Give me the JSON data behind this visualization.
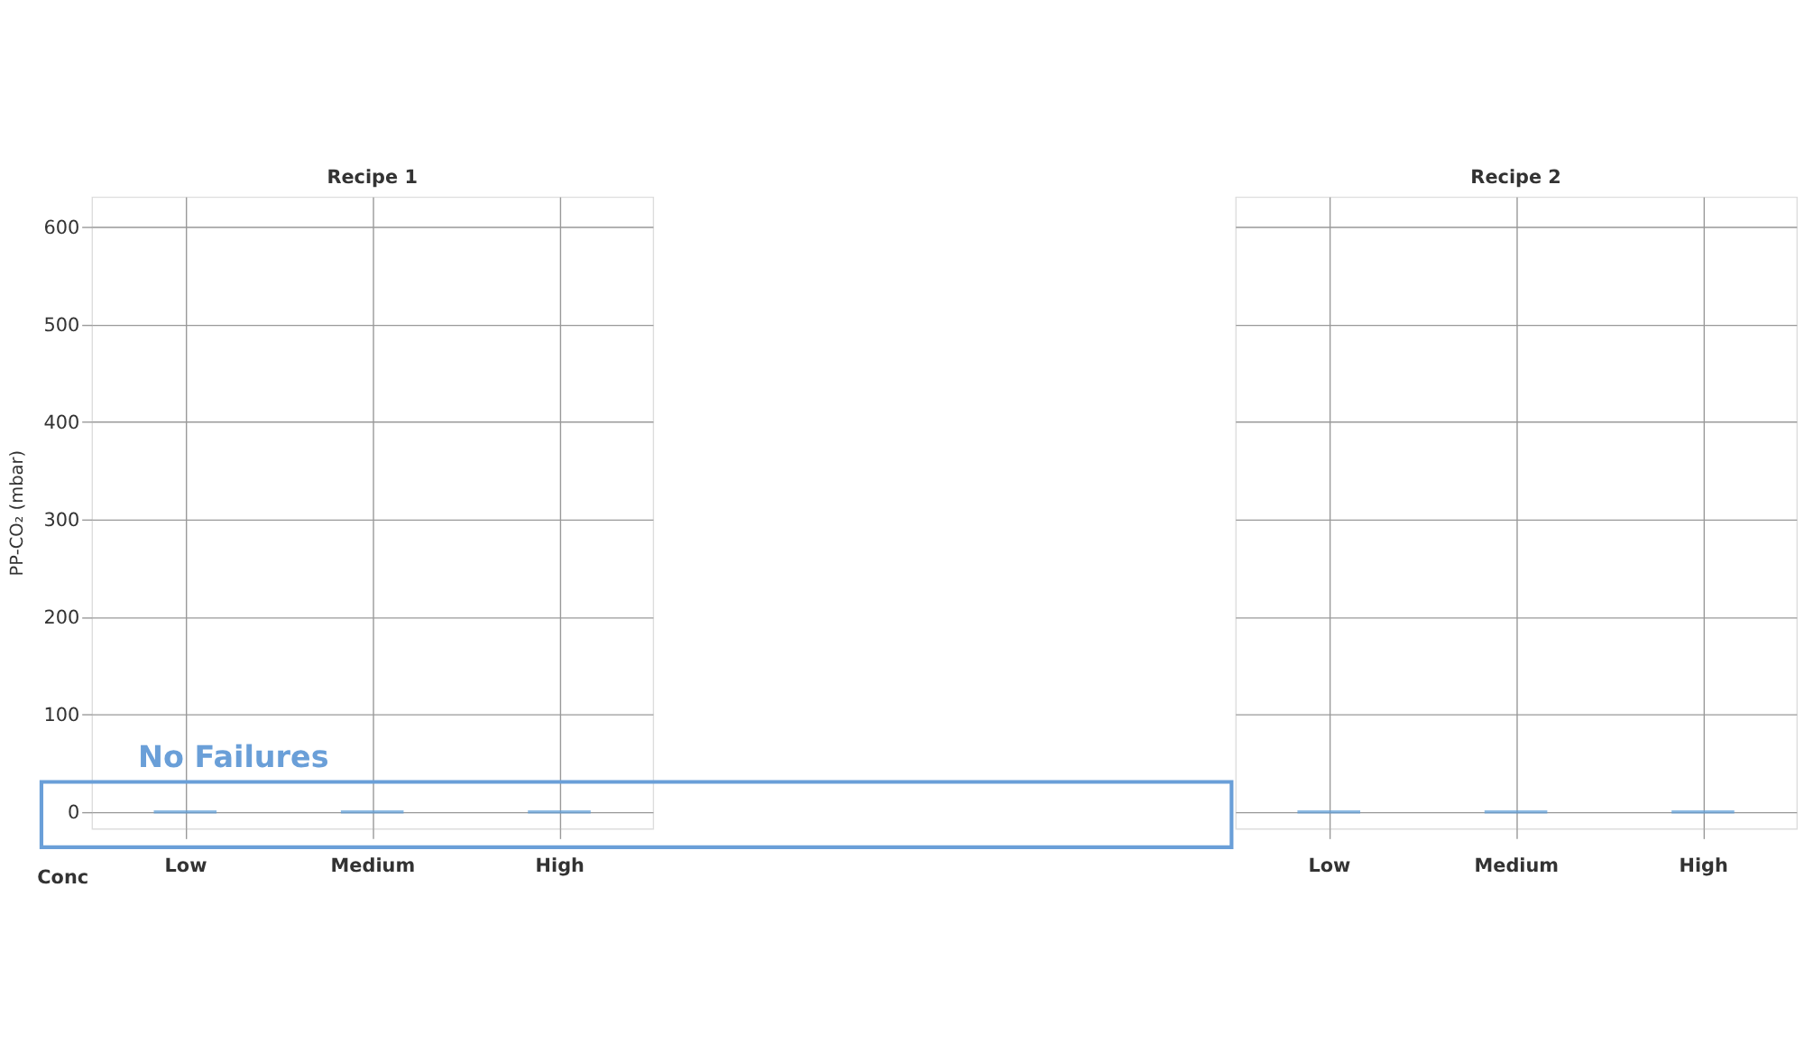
{
  "chart_data": [
    {
      "type": "box",
      "title": "Recipe 1",
      "xlabel": "Conc",
      "ylabel": "PP-CO₂ (mbar)",
      "categories": [
        "Low",
        "Medium",
        "High"
      ],
      "series": [
        {
          "color": "#5b9bd5",
          "boxes": [
            {
              "low": 0,
              "q1": 0,
              "median": 0,
              "q3": 0,
              "high": 0
            },
            {
              "low": 0,
              "q1": 0,
              "median": 0,
              "q3": 0,
              "high": 0
            },
            {
              "low": 0,
              "q1": 0,
              "median": 0,
              "q3": 0,
              "high": 0
            }
          ]
        }
      ],
      "ylim": [
        -17,
        631
      ],
      "yticks": [
        0,
        100,
        200,
        300,
        400,
        500,
        600
      ],
      "grid": true,
      "annotations": [
        "No Failures"
      ]
    },
    {
      "type": "box",
      "title": "Recipe 2",
      "categories": [
        "Low",
        "Medium",
        "High"
      ],
      "series": [
        {
          "color": "#5b9bd5",
          "boxes": [
            {
              "low": 0,
              "q1": 0,
              "median": 0,
              "q3": 0,
              "high": 0
            },
            {
              "low": 0,
              "q1": 0,
              "median": 0,
              "q3": 0,
              "high": 0
            },
            {
              "low": 0,
              "q1": 0,
              "median": 0,
              "q3": 0,
              "high": 0
            }
          ]
        }
      ],
      "ylim": [
        -17,
        631
      ],
      "yticks": [
        0,
        100,
        200,
        300,
        400,
        500,
        600
      ],
      "grid": true,
      "tick_labels": "x"
    }
  ]
}
